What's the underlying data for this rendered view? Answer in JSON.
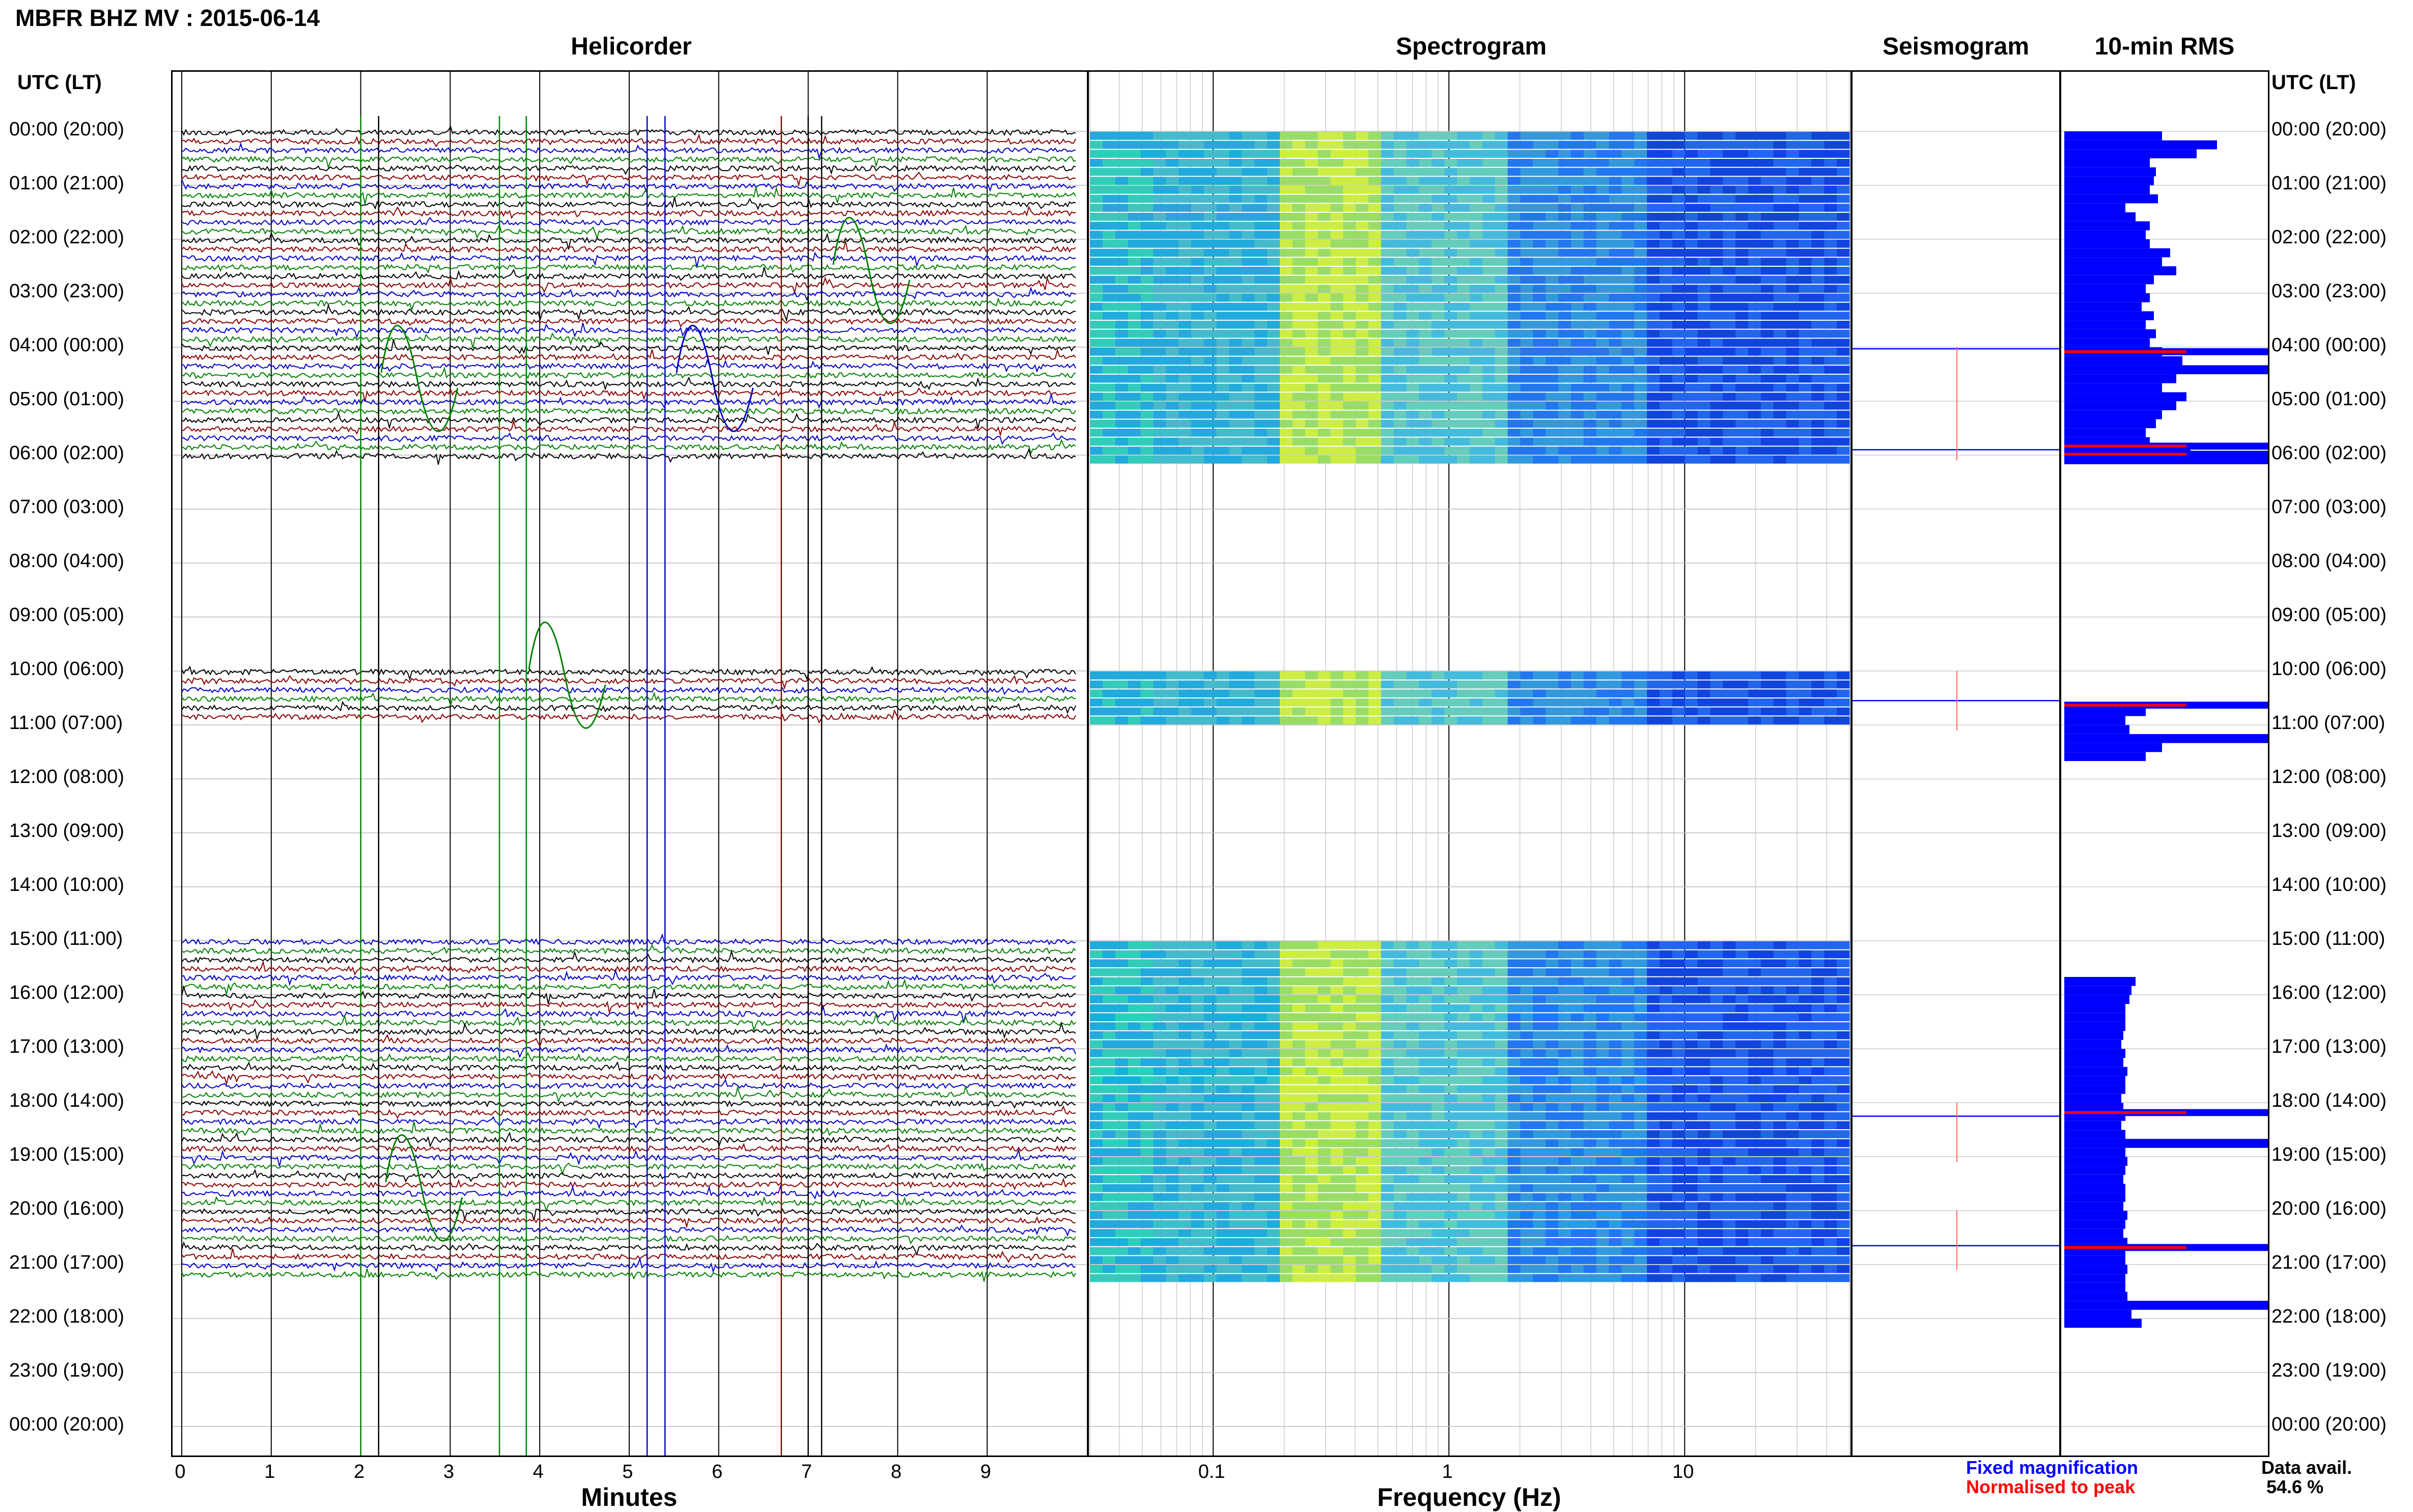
{
  "header": {
    "title": "MBFR BHZ MV : 2015-06-14",
    "sections": [
      "Helicorder",
      "Spectrogram",
      "Seismogram",
      "10-min RMS"
    ],
    "left_axis_title": "UTC (LT)",
    "right_axis_title": "UTC (LT)"
  },
  "row_labels": [
    "00:00 (20:00)",
    "01:00 (21:00)",
    "02:00 (22:00)",
    "03:00 (23:00)",
    "04:00 (00:00)",
    "05:00 (01:00)",
    "06:00 (02:00)",
    "07:00 (03:00)",
    "08:00 (04:00)",
    "09:00 (05:00)",
    "10:00 (06:00)",
    "11:00 (07:00)",
    "12:00 (08:00)",
    "13:00 (09:00)",
    "14:00 (10:00)",
    "15:00 (11:00)",
    "16:00 (12:00)",
    "17:00 (13:00)",
    "18:00 (14:00)",
    "19:00 (15:00)",
    "20:00 (16:00)",
    "21:00 (17:00)",
    "22:00 (18:00)",
    "23:00 (19:00)",
    "00:00 (20:00)"
  ],
  "footer": {
    "helicorder_xlabel": "Minutes",
    "spectrogram_xlabel": "Frequency (Hz)",
    "legend_fixed": "Fixed magnification",
    "legend_normalised": "Normalised to peak",
    "data_avail_label": "Data avail.",
    "data_avail_value": "54.6 %"
  },
  "colors": {
    "trace_cycle": [
      "#000000",
      "#8b0000",
      "#0000c8",
      "#008000"
    ],
    "rms_fixed": "#0000ff",
    "rms_peak": "#ff0000",
    "legend_fixed": "#0000ff",
    "legend_normalised": "#ff0000"
  },
  "chart_data": [
    {
      "type": "line",
      "title": "Helicorder",
      "xlabel": "Minutes",
      "xlim": [
        0,
        10
      ],
      "xticks": [
        0,
        1,
        2,
        3,
        4,
        5,
        6,
        7,
        8,
        9
      ],
      "ylabel": "UTC (LT)",
      "hour_range": [
        0,
        24
      ],
      "rows_per_hour": 6,
      "data_segments_utc_hours": [
        [
          0,
          6.1
        ],
        [
          10,
          11
        ],
        [
          15,
          21.33
        ]
      ],
      "grid": true
    },
    {
      "type": "heatmap",
      "title": "Spectrogram",
      "xlabel": "Frequency (Hz)",
      "xscale": "log",
      "xlim": [
        0.03,
        50
      ],
      "xticks": [
        0.1,
        1,
        10
      ],
      "colormap": "jet",
      "hour_range": [
        0,
        24
      ],
      "data_segments_utc_hours": [
        [
          0,
          6.1
        ],
        [
          10,
          11
        ],
        [
          15,
          21.33
        ]
      ]
    },
    {
      "type": "line",
      "title": "Seismogram",
      "event_hours_utc": [
        4.03,
        5.9,
        10.55,
        18.25,
        20.65
      ]
    },
    {
      "type": "bar",
      "title": "10-min RMS",
      "orientation": "horizontal",
      "series": [
        {
          "name": "Fixed magnification",
          "start_hour": 0,
          "step_hours": 0.1667,
          "values": [
            0.48,
            0.75,
            0.65,
            0.42,
            0.45,
            0.44,
            0.42,
            0.46,
            0.3,
            0.35,
            0.42,
            0.4,
            0.42,
            0.52,
            0.48,
            0.55,
            0.44,
            0.4,
            0.42,
            0.38,
            0.44,
            0.4,
            0.45,
            0.42,
            0.48,
            0.58,
            1.0,
            0.55,
            0.48,
            0.6,
            0.55,
            0.48,
            0.45,
            0.4,
            0.42,
            0.62,
            1.0,
            null,
            null,
            null,
            null,
            null,
            null,
            null,
            null,
            null,
            null,
            null,
            null,
            null,
            null,
            null,
            null,
            null,
            null,
            null,
            null,
            null,
            null,
            null,
            null,
            null,
            null,
            null,
            0.4,
            0.3,
            0.32,
            1.0,
            0.48,
            0.4,
            null,
            null,
            null,
            null,
            null,
            null,
            null,
            null,
            null,
            null,
            null,
            null,
            null,
            null,
            null,
            null,
            null,
            null,
            null,
            null,
            null,
            null,
            null,
            null,
            0.35,
            0.33,
            0.32,
            0.3,
            0.3,
            0.3,
            0.29,
            0.28,
            0.3,
            0.29,
            0.31,
            0.3,
            0.3,
            0.28,
            0.29,
            0.3,
            0.28,
            0.3,
            1.0,
            0.3,
            0.31,
            0.3,
            0.29,
            0.3,
            0.3,
            0.29,
            0.31,
            0.3,
            0.29,
            0.31,
            0.3,
            0.3,
            0.31,
            0.3,
            0.3,
            0.31,
            1.0,
            0.33,
            0.38
          ]
        }
      ],
      "peak_rows_hour": [
        4.0,
        5.75,
        5.9,
        10.55,
        18.1,
        20.6
      ]
    }
  ]
}
